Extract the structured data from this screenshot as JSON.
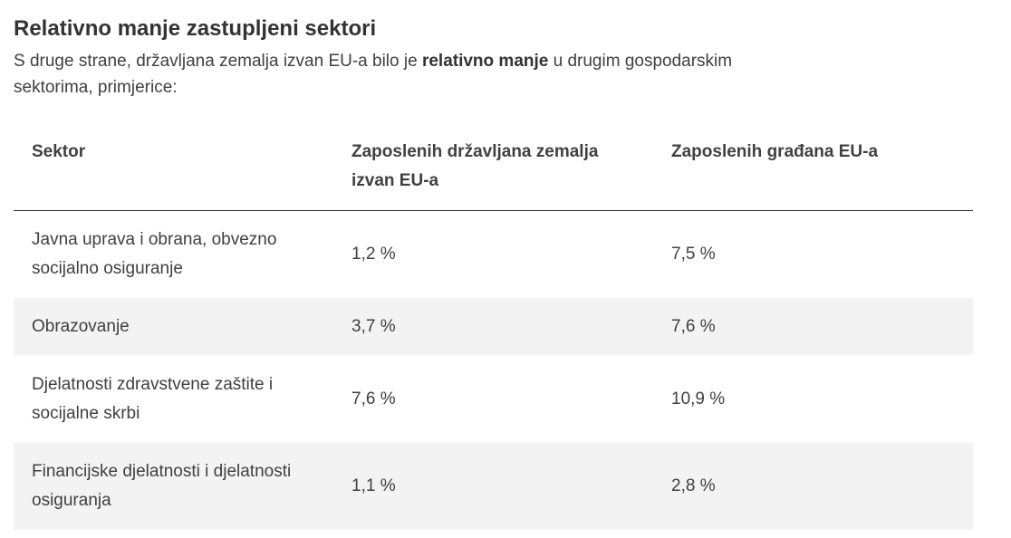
{
  "section": {
    "title": "Relativno manje zastupljeni sektori",
    "intro_before": "S druge strane, državljana zemalja izvan EU-a bilo je ",
    "intro_bold": "relativno manje",
    "intro_after": " u drugim gospodarskim sektorima, primjerice:"
  },
  "table": {
    "headers": {
      "sector": "Sektor",
      "non_eu": "Zaposlenih državljana zemalja izvan EU-a",
      "eu": "Zaposlenih građana EU-a"
    },
    "rows": [
      {
        "sector": "Javna uprava i obrana, obvezno socijalno osiguranje",
        "non_eu": "1,2 %",
        "eu": "7,5 %"
      },
      {
        "sector": "Obrazovanje",
        "non_eu": "3,7 %",
        "eu": "7,6 %"
      },
      {
        "sector": "Djelatnosti zdravstvene zaštite i socijalne skrbi",
        "non_eu": "7,6 %",
        "eu": "10,9 %"
      },
      {
        "sector": "Financijske djelatnosti i djelatnosti osiguranja",
        "non_eu": "1,1 %",
        "eu": "2,8 %"
      }
    ]
  }
}
